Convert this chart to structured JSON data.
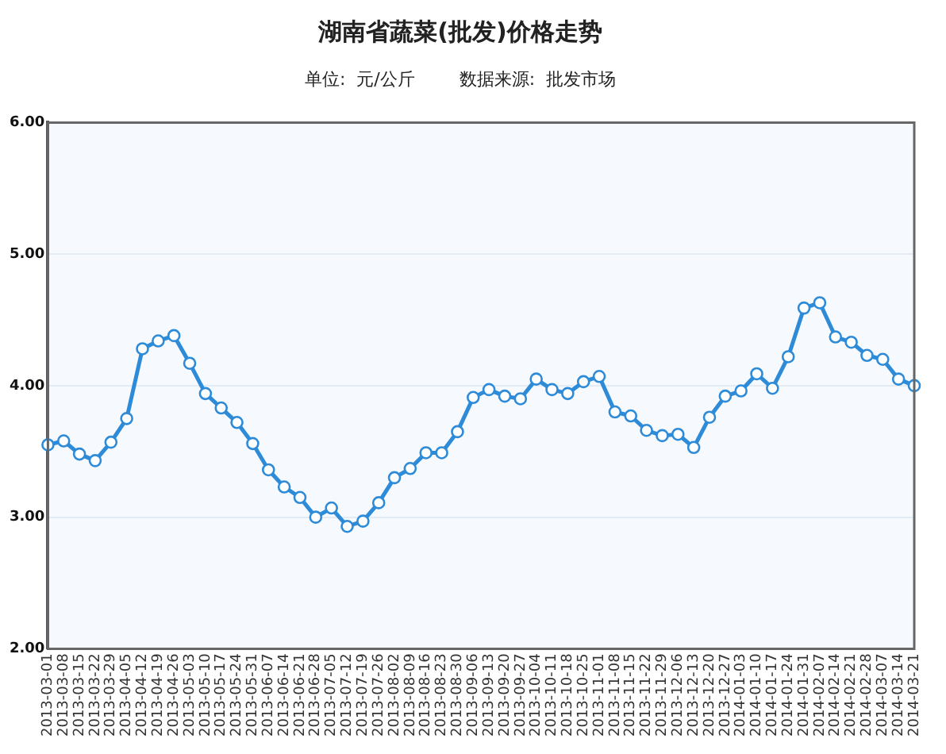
{
  "chart_data": {
    "type": "line",
    "title": "湖南省蔬菜(批发)价格走势",
    "subtitle": "单位:  元/公斤        数据来源:  批发市场",
    "categories": [
      "2013-03-01",
      "2013-03-08",
      "2013-03-15",
      "2013-03-22",
      "2013-03-29",
      "2013-04-05",
      "2013-04-12",
      "2013-04-19",
      "2013-04-26",
      "2013-05-03",
      "2013-05-10",
      "2013-05-17",
      "2013-05-24",
      "2013-05-31",
      "2013-06-07",
      "2013-06-14",
      "2013-06-21",
      "2013-06-28",
      "2013-07-05",
      "2013-07-12",
      "2013-07-19",
      "2013-07-26",
      "2013-08-02",
      "2013-08-09",
      "2013-08-16",
      "2013-08-23",
      "2013-08-30",
      "2013-09-06",
      "2013-09-13",
      "2013-09-20",
      "2013-09-27",
      "2013-10-04",
      "2013-10-11",
      "2013-10-18",
      "2013-10-25",
      "2013-11-01",
      "2013-11-08",
      "2013-11-15",
      "2013-11-22",
      "2013-11-29",
      "2013-12-06",
      "2013-12-13",
      "2013-12-20",
      "2013-12-27",
      "2014-01-03",
      "2014-01-10",
      "2014-01-17",
      "2014-01-24",
      "2014-01-31",
      "2014-02-07",
      "2014-02-14",
      "2014-02-21",
      "2014-02-28",
      "2014-03-07",
      "2014-03-14",
      "2014-03-21"
    ],
    "series": [
      {
        "color": "#2e8bd8",
        "values": [
          3.55,
          3.58,
          3.48,
          3.43,
          3.57,
          3.75,
          4.28,
          4.34,
          4.38,
          4.17,
          3.94,
          3.83,
          3.72,
          3.56,
          3.36,
          3.23,
          3.15,
          3.0,
          3.07,
          2.93,
          2.97,
          3.11,
          3.3,
          3.37,
          3.49,
          3.49,
          3.65,
          3.91,
          3.97,
          3.92,
          3.9,
          4.05,
          3.97,
          3.94,
          4.03,
          4.07,
          3.8,
          3.77,
          3.66,
          3.62,
          3.63,
          3.53,
          3.76,
          3.92,
          3.96,
          4.09,
          3.98,
          4.22,
          4.59,
          4.63,
          4.37,
          4.33,
          4.23,
          4.2,
          4.05,
          4.0
        ]
      }
    ],
    "ylim": [
      2,
      6
    ],
    "yticks": [
      {
        "value": 2,
        "label": "2.00"
      },
      {
        "value": 3,
        "label": "3.00"
      },
      {
        "value": 4,
        "label": "4.00"
      },
      {
        "value": 5,
        "label": "5.00"
      },
      {
        "value": 6,
        "label": "6.00"
      }
    ],
    "grid": "y",
    "legend": false,
    "marker": "circle",
    "line_style": "solid"
  }
}
